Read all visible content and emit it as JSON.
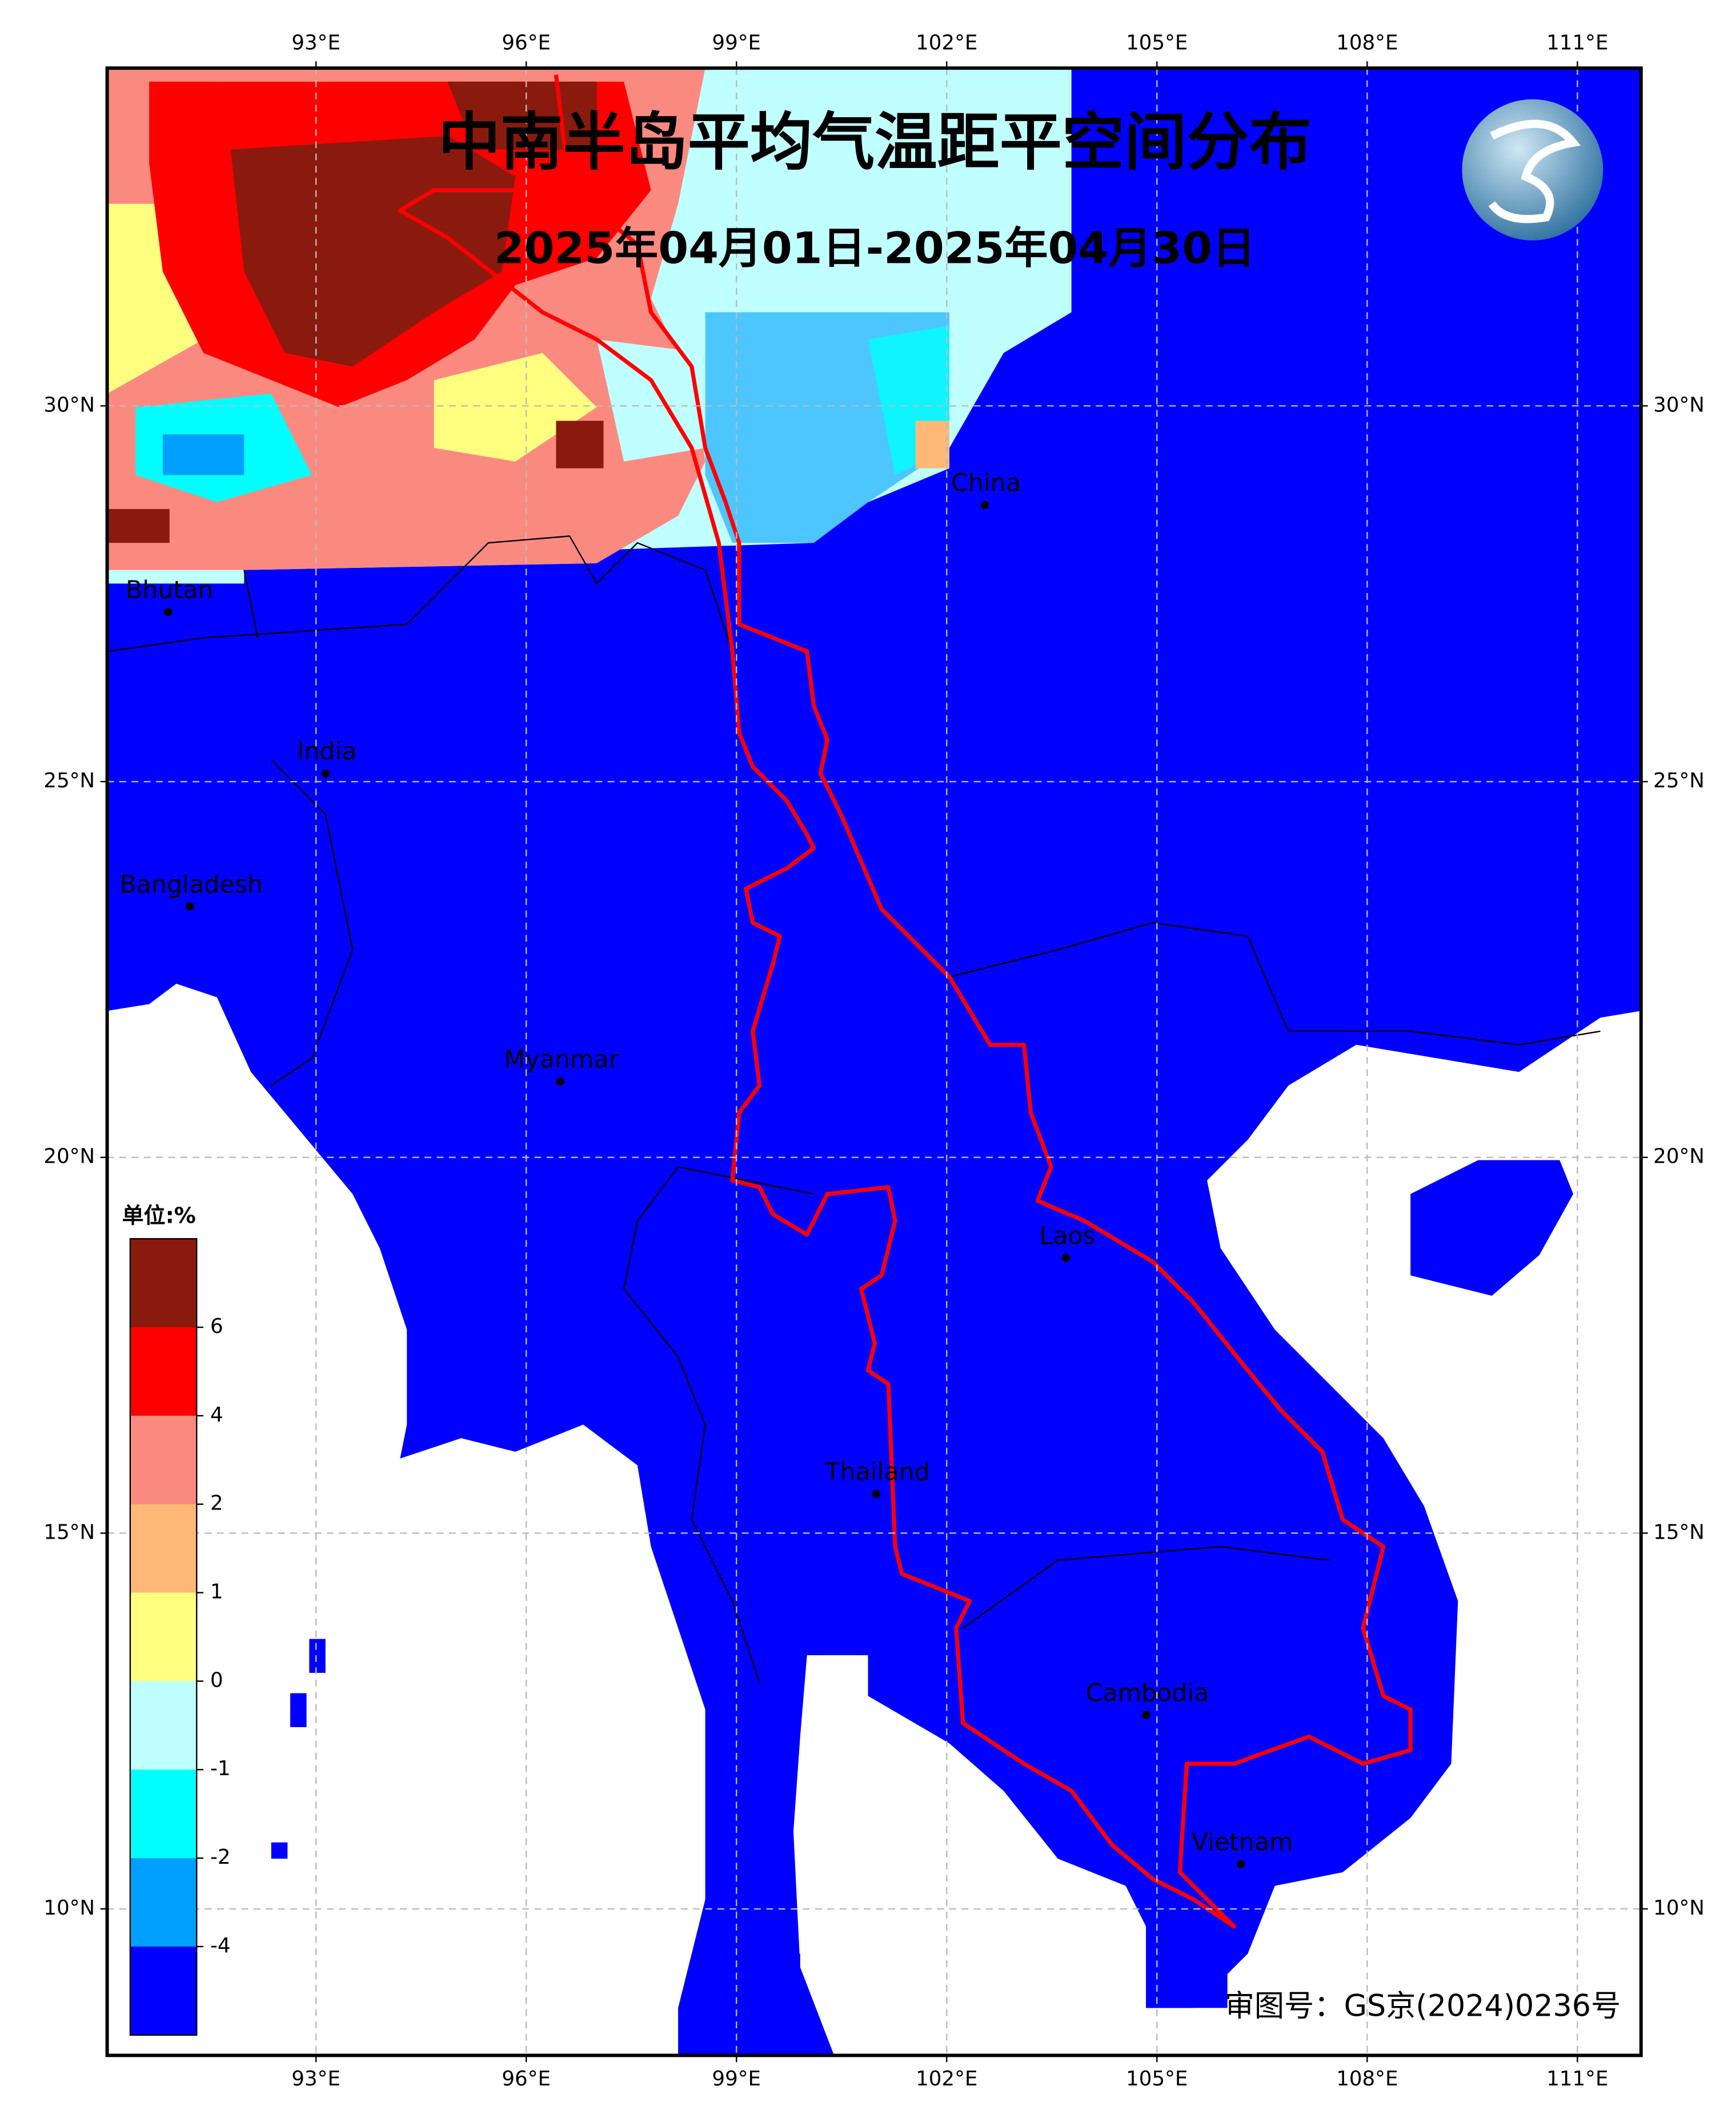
{
  "map": {
    "title": "中南半岛平均气温距平空间分布",
    "subtitle": "2025年04月01日-2025年04月30日",
    "lon_ticks": [
      {
        "value": 93,
        "label": "93°E"
      },
      {
        "value": 96,
        "label": "96°E"
      },
      {
        "value": 99,
        "label": "99°E"
      },
      {
        "value": 102,
        "label": "102°E"
      },
      {
        "value": 105,
        "label": "105°E"
      },
      {
        "value": 108,
        "label": "108°E"
      },
      {
        "value": 111,
        "label": "111°E"
      }
    ],
    "lat_ticks": [
      {
        "value": 30,
        "label": "30°N"
      },
      {
        "value": 25,
        "label": "25°N"
      },
      {
        "value": 20,
        "label": "20°N"
      },
      {
        "value": 15,
        "label": "15°N"
      },
      {
        "value": 10,
        "label": "10°N"
      }
    ],
    "places": [
      "China",
      "Bhutan",
      "India",
      "Bangladesh",
      "Myanmar",
      "Laos",
      "Thailand",
      "Cambodia",
      "Vietnam"
    ],
    "legend": {
      "title": "单位:%",
      "levels": [
        6,
        4,
        2,
        1,
        0,
        -1,
        -2,
        -4
      ],
      "colors": [
        "#8b1a0e",
        "#ff0000",
        "#fa8a80",
        "#ffb878",
        "#ffff80",
        "#c0ffff",
        "#00ffff",
        "#00a0ff",
        "#0000ff"
      ]
    },
    "approval": "审图号：GS京(2024)0236号"
  }
}
